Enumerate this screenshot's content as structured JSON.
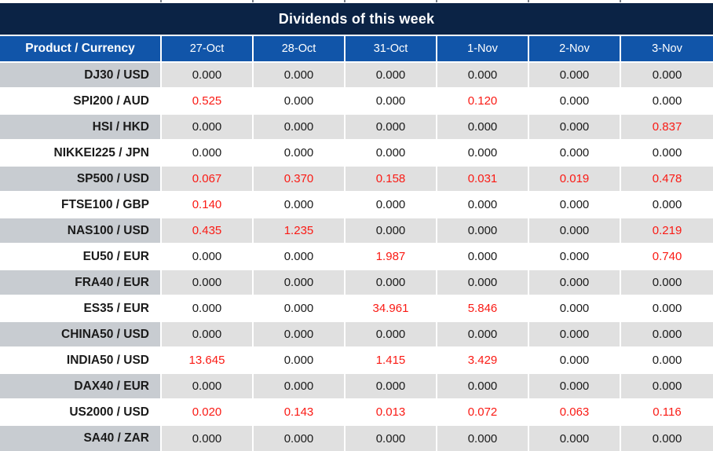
{
  "colors": {
    "title_bg": "#0b2345",
    "header_bg": "#1155a9",
    "gray_label": "#c8ccd1",
    "gray_cell": "#e0e0e0",
    "text_dark": "#1a1a1a",
    "red": "#fa1a14",
    "border": "#ffffff"
  },
  "chart_data": {
    "type": "table",
    "title": "Dividends of this week",
    "columns": [
      "Product / Currency",
      "27-Oct",
      "28-Oct",
      "31-Oct",
      "1-Nov",
      "2-Nov",
      "3-Nov"
    ],
    "value_format": "3-decimals",
    "red_means": "non-zero dividend highlight",
    "rows": [
      {
        "product": "DJ30 / USD",
        "values": [
          0.0,
          0.0,
          0.0,
          0.0,
          0.0,
          0.0
        ],
        "red": [
          false,
          false,
          false,
          false,
          false,
          false
        ]
      },
      {
        "product": "SPI200 / AUD",
        "values": [
          0.525,
          0.0,
          0.0,
          0.12,
          0.0,
          0.0
        ],
        "red": [
          true,
          false,
          false,
          true,
          false,
          false
        ]
      },
      {
        "product": "HSI / HKD",
        "values": [
          0.0,
          0.0,
          0.0,
          0.0,
          0.0,
          0.837
        ],
        "red": [
          false,
          false,
          false,
          false,
          false,
          true
        ]
      },
      {
        "product": "NIKKEI225 / JPN",
        "values": [
          0.0,
          0.0,
          0.0,
          0.0,
          0.0,
          0.0
        ],
        "red": [
          false,
          false,
          false,
          false,
          false,
          false
        ]
      },
      {
        "product": "SP500 / USD",
        "values": [
          0.067,
          0.37,
          0.158,
          0.031,
          0.019,
          0.478
        ],
        "red": [
          true,
          true,
          true,
          true,
          true,
          true
        ]
      },
      {
        "product": "FTSE100 / GBP",
        "values": [
          0.14,
          0.0,
          0.0,
          0.0,
          0.0,
          0.0
        ],
        "red": [
          true,
          false,
          false,
          false,
          false,
          false
        ]
      },
      {
        "product": "NAS100 / USD",
        "values": [
          0.435,
          1.235,
          0.0,
          0.0,
          0.0,
          0.219
        ],
        "red": [
          true,
          true,
          false,
          false,
          false,
          true
        ]
      },
      {
        "product": "EU50 / EUR",
        "values": [
          0.0,
          0.0,
          1.987,
          0.0,
          0.0,
          0.74
        ],
        "red": [
          false,
          false,
          true,
          false,
          false,
          true
        ]
      },
      {
        "product": "FRA40 / EUR",
        "values": [
          0.0,
          0.0,
          0.0,
          0.0,
          0.0,
          0.0
        ],
        "red": [
          false,
          false,
          false,
          false,
          false,
          false
        ]
      },
      {
        "product": "ES35 / EUR",
        "values": [
          0.0,
          0.0,
          34.961,
          5.846,
          0.0,
          0.0
        ],
        "red": [
          false,
          false,
          true,
          true,
          false,
          false
        ]
      },
      {
        "product": "CHINA50 / USD",
        "values": [
          0.0,
          0.0,
          0.0,
          0.0,
          0.0,
          0.0
        ],
        "red": [
          false,
          false,
          false,
          false,
          false,
          false
        ]
      },
      {
        "product": "INDIA50 / USD",
        "values": [
          13.645,
          0.0,
          1.415,
          3.429,
          0.0,
          0.0
        ],
        "red": [
          true,
          false,
          true,
          true,
          false,
          false
        ]
      },
      {
        "product": "DAX40 / EUR",
        "values": [
          0.0,
          0.0,
          0.0,
          0.0,
          0.0,
          0.0
        ],
        "red": [
          false,
          false,
          false,
          false,
          false,
          false
        ]
      },
      {
        "product": "US2000 / USD",
        "values": [
          0.02,
          0.143,
          0.013,
          0.072,
          0.063,
          0.116
        ],
        "red": [
          true,
          true,
          true,
          true,
          true,
          true
        ]
      },
      {
        "product": "SA40 / ZAR",
        "values": [
          0.0,
          0.0,
          0.0,
          0.0,
          0.0,
          0.0
        ],
        "red": [
          false,
          false,
          false,
          false,
          false,
          false
        ]
      }
    ]
  }
}
